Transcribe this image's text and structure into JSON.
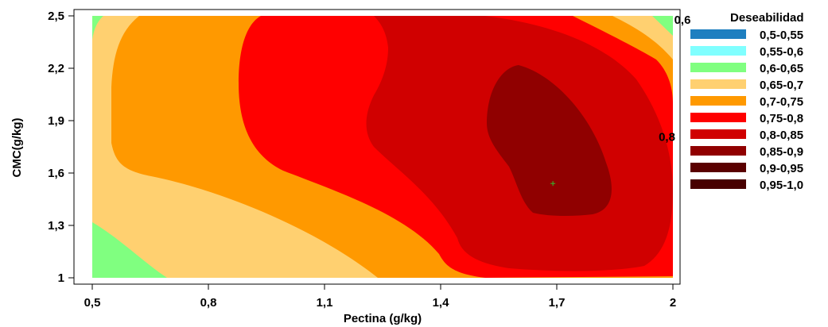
{
  "chart_data": {
    "type": "contour",
    "title": "",
    "xlabel": "Pectina (g/kg)",
    "ylabel": "CMC(g/kg)",
    "xlim": [
      0.5,
      2.0
    ],
    "ylim": [
      1.0,
      2.5
    ],
    "x_ticks": [
      "0,5",
      "0,8",
      "1,1",
      "1,4",
      "1,7",
      "2"
    ],
    "x_tick_values": [
      0.5,
      0.8,
      1.1,
      1.4,
      1.7,
      2.0
    ],
    "y_ticks": [
      "1",
      "1,3",
      "1,6",
      "1,9",
      "2,2",
      "2,5"
    ],
    "y_tick_values": [
      1.0,
      1.3,
      1.6,
      1.9,
      2.2,
      2.5
    ],
    "legend_title": "Deseabilidad",
    "legend_placement": "right",
    "levels": [
      {
        "label": "0,5-0,55",
        "color": "#1e7fc0"
      },
      {
        "label": "0,55-0,6",
        "color": "#80ffff"
      },
      {
        "label": "0,6-0,65",
        "color": "#80ff80"
      },
      {
        "label": "0,65-0,7",
        "color": "#ffd070"
      },
      {
        "label": "0,7-0,75",
        "color": "#ff9900"
      },
      {
        "label": "0,75-0,8",
        "color": "#ff0000"
      },
      {
        "label": "0,8-0,85",
        "color": "#d00000"
      },
      {
        "label": "0,85-0,9",
        "color": "#900000"
      },
      {
        "label": "0,9-0,95",
        "color": "#5a0000"
      },
      {
        "label": "0,95-1,0",
        "color": "#480000"
      }
    ],
    "annotations": [
      {
        "text": "0,6",
        "x": 2.0,
        "y": 2.5
      },
      {
        "text": "0,8",
        "x": 1.96,
        "y": 1.83
      }
    ],
    "optimum_marker": {
      "x": 1.69,
      "y": 1.54
    },
    "grid": false
  }
}
